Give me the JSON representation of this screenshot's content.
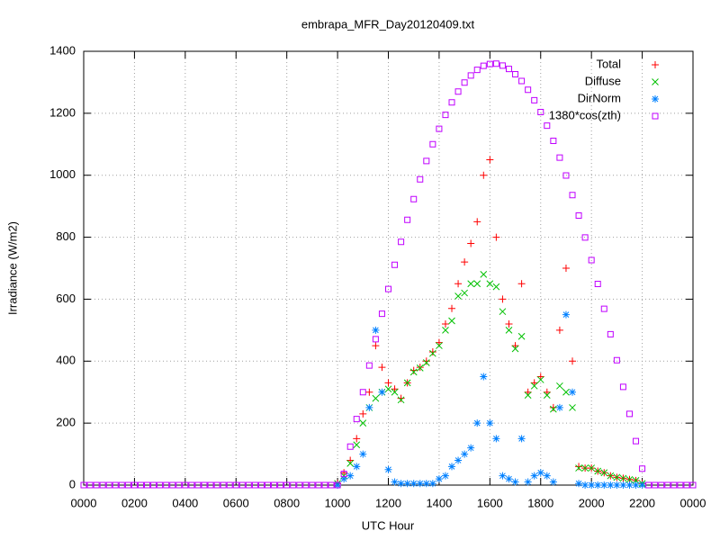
{
  "chart_data": {
    "type": "scatter",
    "title": "embrapa_MFR_Day20120409.txt",
    "x_label": "UTC Hour",
    "y_label": "Irradiance (W/m2)",
    "xlim": [
      0,
      24
    ],
    "ylim": [
      0,
      1400
    ],
    "xticks": [
      {
        "value": 0,
        "label": "0000"
      },
      {
        "value": 2,
        "label": "0200"
      },
      {
        "value": 4,
        "label": "0400"
      },
      {
        "value": 6,
        "label": "0600"
      },
      {
        "value": 8,
        "label": "0800"
      },
      {
        "value": 10,
        "label": "1000"
      },
      {
        "value": 12,
        "label": "1200"
      },
      {
        "value": 14,
        "label": "1400"
      },
      {
        "value": 16,
        "label": "1600"
      },
      {
        "value": 18,
        "label": "1800"
      },
      {
        "value": 20,
        "label": "2000"
      },
      {
        "value": 22,
        "label": "2200"
      },
      {
        "value": 24,
        "label": "0000"
      }
    ],
    "yticks": [
      0,
      200,
      400,
      600,
      800,
      1000,
      1200,
      1400
    ],
    "grid": true,
    "legend_position": "top-right",
    "x": [
      0,
      0.25,
      0.5,
      0.75,
      1,
      1.25,
      1.5,
      1.75,
      2,
      2.25,
      2.5,
      2.75,
      3,
      3.25,
      3.5,
      3.75,
      4,
      4.25,
      4.5,
      4.75,
      5,
      5.25,
      5.5,
      5.75,
      6,
      6.25,
      6.5,
      6.75,
      7,
      7.25,
      7.5,
      7.75,
      8,
      8.25,
      8.5,
      8.75,
      9,
      9.25,
      9.5,
      9.75,
      10,
      10.25,
      10.5,
      10.75,
      11,
      11.25,
      11.5,
      11.75,
      12,
      12.25,
      12.5,
      12.75,
      13,
      13.25,
      13.5,
      13.75,
      14,
      14.25,
      14.5,
      14.75,
      15,
      15.25,
      15.5,
      15.75,
      16,
      16.25,
      16.5,
      16.75,
      17,
      17.25,
      17.5,
      17.75,
      18,
      18.25,
      18.5,
      18.75,
      19,
      19.25,
      19.5,
      19.75,
      20,
      20.25,
      20.5,
      20.75,
      21,
      21.25,
      21.5,
      21.75,
      22,
      22.25,
      22.5,
      22.75,
      23,
      23.25,
      23.5,
      23.75,
      24
    ],
    "series": [
      {
        "name": "Total",
        "color": "#ff0000",
        "marker": "plus",
        "values": [
          null,
          null,
          null,
          null,
          null,
          null,
          null,
          null,
          null,
          null,
          null,
          null,
          null,
          null,
          null,
          null,
          null,
          null,
          null,
          null,
          null,
          null,
          null,
          null,
          null,
          null,
          null,
          null,
          null,
          null,
          null,
          null,
          null,
          null,
          null,
          null,
          null,
          null,
          null,
          null,
          5,
          40,
          80,
          150,
          230,
          300,
          450,
          380,
          330,
          310,
          280,
          330,
          370,
          380,
          400,
          430,
          460,
          520,
          570,
          650,
          720,
          780,
          850,
          1000,
          1050,
          800,
          600,
          520,
          450,
          650,
          300,
          330,
          350,
          300,
          250,
          500,
          700,
          400,
          60,
          55,
          55,
          45,
          40,
          30,
          25,
          22,
          18,
          15,
          5,
          null,
          null,
          null,
          null,
          null,
          null,
          null,
          null
        ]
      },
      {
        "name": "Diffuse",
        "color": "#00c000",
        "marker": "cross",
        "values": [
          null,
          null,
          null,
          null,
          null,
          null,
          null,
          null,
          null,
          null,
          null,
          null,
          null,
          null,
          null,
          null,
          null,
          null,
          null,
          null,
          null,
          null,
          null,
          null,
          null,
          null,
          null,
          null,
          null,
          null,
          null,
          null,
          null,
          null,
          null,
          null,
          null,
          null,
          null,
          null,
          5,
          30,
          70,
          130,
          200,
          250,
          280,
          300,
          310,
          300,
          275,
          330,
          365,
          378,
          395,
          425,
          450,
          500,
          530,
          610,
          620,
          650,
          650,
          680,
          650,
          640,
          560,
          500,
          440,
          480,
          290,
          320,
          340,
          290,
          245,
          320,
          300,
          250,
          55,
          55,
          55,
          45,
          40,
          30,
          25,
          22,
          18,
          15,
          5,
          null,
          null,
          null,
          null,
          null,
          null,
          null,
          null
        ]
      },
      {
        "name": "DirNorm",
        "color": "#0080ff",
        "marker": "star",
        "values": [
          null,
          null,
          null,
          null,
          null,
          null,
          null,
          null,
          null,
          null,
          null,
          null,
          null,
          null,
          null,
          null,
          null,
          null,
          null,
          null,
          null,
          null,
          null,
          null,
          null,
          null,
          null,
          null,
          null,
          null,
          null,
          null,
          null,
          null,
          null,
          null,
          null,
          null,
          null,
          null,
          0,
          20,
          30,
          60,
          100,
          250,
          500,
          300,
          50,
          10,
          5,
          5,
          5,
          5,
          5,
          5,
          20,
          30,
          60,
          80,
          100,
          120,
          200,
          350,
          200,
          150,
          30,
          20,
          10,
          150,
          10,
          30,
          40,
          30,
          10,
          250,
          550,
          300,
          5,
          0,
          0,
          0,
          0,
          0,
          0,
          0,
          0,
          0,
          0,
          null,
          null,
          null,
          null,
          null,
          null,
          null,
          null
        ]
      },
      {
        "name": "1380*cos(zth)",
        "color": "#c000ff",
        "marker": "square",
        "values": [
          0,
          0,
          0,
          0,
          0,
          0,
          0,
          0,
          0,
          0,
          0,
          0,
          0,
          0,
          0,
          0,
          0,
          0,
          0,
          0,
          0,
          0,
          0,
          0,
          0,
          0,
          0,
          0,
          0,
          0,
          0,
          0,
          0,
          0,
          0,
          0,
          0,
          0,
          0,
          0,
          0,
          36,
          124,
          213,
          300,
          386,
          471,
          553,
          633,
          711,
          785,
          856,
          923,
          987,
          1046,
          1100,
          1150,
          1195,
          1235,
          1270,
          1299,
          1322,
          1340,
          1353,
          1359,
          1360,
          1354,
          1343,
          1326,
          1304,
          1276,
          1242,
          1204,
          1160,
          1111,
          1057,
          999,
          936,
          870,
          799,
          726,
          649,
          569,
          487,
          403,
          317,
          230,
          142,
          53,
          0,
          0,
          0,
          0,
          0,
          0,
          0,
          0
        ]
      }
    ]
  }
}
